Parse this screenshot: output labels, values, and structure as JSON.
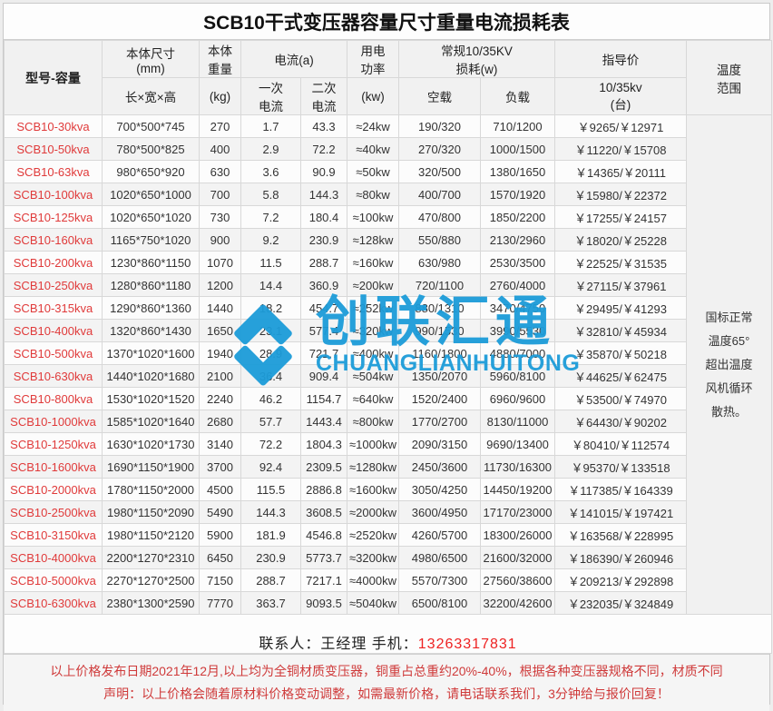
{
  "title": "SCB10干式变压器容量尺寸重量电流损耗表",
  "colors": {
    "accent_red": "#e03a3a",
    "phone_red": "#ee2222",
    "watermark_blue": "#1c9cd9"
  },
  "watermark": {
    "cn": "创联汇通",
    "en": "CHUANGLIANHUITONG"
  },
  "table": {
    "header": {
      "model": "型号-容量",
      "dims_group": "本体尺寸\n(mm)",
      "dims_sub": "长×宽×高",
      "weight_group": "本体\n重量",
      "weight_sub": "(kg)",
      "current_group": "电流(a)",
      "current_primary": "一次\n电流",
      "current_secondary": "二次\n电流",
      "power_group": "用电\n功率",
      "power_sub": "(kw)",
      "loss_group": "常规10/35KV\n损耗(w)",
      "loss_no_load": "空载",
      "loss_load": "负载",
      "price_group": "指导价",
      "price_sub": "10/35kv\n(台)",
      "temperature": "温度\n范围"
    },
    "temperature_note": "国标正常\n温度65°\n超出温度\n风机循环\n散热。",
    "rows": [
      {
        "model": "SCB10-30kva",
        "dims": "700*500*745",
        "weight": "270",
        "i1": "1.7",
        "i2": "43.3",
        "power": "≈24kw",
        "no_load": "190/320",
        "load": "710/1200",
        "price": "￥9265/￥12971"
      },
      {
        "model": "SCB10-50kva",
        "dims": "780*500*825",
        "weight": "400",
        "i1": "2.9",
        "i2": "72.2",
        "power": "≈40kw",
        "no_load": "270/320",
        "load": "1000/1500",
        "price": "￥11220/￥15708"
      },
      {
        "model": "SCB10-63kva",
        "dims": "980*650*920",
        "weight": "630",
        "i1": "3.6",
        "i2": "90.9",
        "power": "≈50kw",
        "no_load": "320/500",
        "load": "1380/1650",
        "price": "￥14365/￥20111"
      },
      {
        "model": "SCB10-100kva",
        "dims": "1020*650*1000",
        "weight": "700",
        "i1": "5.8",
        "i2": "144.3",
        "power": "≈80kw",
        "no_load": "400/700",
        "load": "1570/1920",
        "price": "￥15980/￥22372"
      },
      {
        "model": "SCB10-125kva",
        "dims": "1020*650*1020",
        "weight": "730",
        "i1": "7.2",
        "i2": "180.4",
        "power": "≈100kw",
        "no_load": "470/800",
        "load": "1850/2200",
        "price": "￥17255/￥24157"
      },
      {
        "model": "SCB10-160kva",
        "dims": "1165*750*1020",
        "weight": "900",
        "i1": "9.2",
        "i2": "230.9",
        "power": "≈128kw",
        "no_load": "550/880",
        "load": "2130/2960",
        "price": "￥18020/￥25228"
      },
      {
        "model": "SCB10-200kva",
        "dims": "1230*860*1150",
        "weight": "1070",
        "i1": "11.5",
        "i2": "288.7",
        "power": "≈160kw",
        "no_load": "630/980",
        "load": "2530/3500",
        "price": "￥22525/￥31535"
      },
      {
        "model": "SCB10-250kva",
        "dims": "1280*860*1180",
        "weight": "1200",
        "i1": "14.4",
        "i2": "360.9",
        "power": "≈200kw",
        "no_load": "720/1100",
        "load": "2760/4000",
        "price": "￥27115/￥37961"
      },
      {
        "model": "SCB10-315kva",
        "dims": "1290*860*1360",
        "weight": "1440",
        "i1": "18.2",
        "i2": "454.7",
        "power": "≈252kw",
        "no_load": "880/1310",
        "load": "3470/4750",
        "price": "￥29495/￥41293"
      },
      {
        "model": "SCB10-400kva",
        "dims": "1320*860*1430",
        "weight": "1650",
        "i1": "23.1",
        "i2": "577.4",
        "power": "≈320kw",
        "no_load": "990/1530",
        "load": "3990/5530",
        "price": "￥32810/￥45934"
      },
      {
        "model": "SCB10-500kva",
        "dims": "1370*1020*1600",
        "weight": "1940",
        "i1": "28.9",
        "i2": "721.7",
        "power": "≈400kw",
        "no_load": "1160/1800",
        "load": "4880/7000",
        "price": "￥35870/￥50218"
      },
      {
        "model": "SCB10-630kva",
        "dims": "1440*1020*1680",
        "weight": "2100",
        "i1": "36.4",
        "i2": "909.4",
        "power": "≈504kw",
        "no_load": "1350/2070",
        "load": "5960/8100",
        "price": "￥44625/￥62475"
      },
      {
        "model": "SCB10-800kva",
        "dims": "1530*1020*1520",
        "weight": "2240",
        "i1": "46.2",
        "i2": "1154.7",
        "power": "≈640kw",
        "no_load": "1520/2400",
        "load": "6960/9600",
        "price": "￥53500/￥74970"
      },
      {
        "model": "SCB10-1000kva",
        "dims": "1585*1020*1640",
        "weight": "2680",
        "i1": "57.7",
        "i2": "1443.4",
        "power": "≈800kw",
        "no_load": "1770/2700",
        "load": "8130/11000",
        "price": "￥64430/￥90202"
      },
      {
        "model": "SCB10-1250kva",
        "dims": "1630*1020*1730",
        "weight": "3140",
        "i1": "72.2",
        "i2": "1804.3",
        "power": "≈1000kw",
        "no_load": "2090/3150",
        "load": "9690/13400",
        "price": "￥80410/￥112574"
      },
      {
        "model": "SCB10-1600kva",
        "dims": "1690*1150*1900",
        "weight": "3700",
        "i1": "92.4",
        "i2": "2309.5",
        "power": "≈1280kw",
        "no_load": "2450/3600",
        "load": "11730/16300",
        "price": "￥95370/￥133518"
      },
      {
        "model": "SCB10-2000kva",
        "dims": "1780*1150*2000",
        "weight": "4500",
        "i1": "115.5",
        "i2": "2886.8",
        "power": "≈1600kw",
        "no_load": "3050/4250",
        "load": "14450/19200",
        "price": "￥117385/￥164339"
      },
      {
        "model": "SCB10-2500kva",
        "dims": "1980*1150*2090",
        "weight": "5490",
        "i1": "144.3",
        "i2": "3608.5",
        "power": "≈2000kw",
        "no_load": "3600/4950",
        "load": "17170/23000",
        "price": "￥141015/￥197421"
      },
      {
        "model": "SCB10-3150kva",
        "dims": "1980*1150*2120",
        "weight": "5900",
        "i1": "181.9",
        "i2": "4546.8",
        "power": "≈2520kw",
        "no_load": "4260/5700",
        "load": "18300/26000",
        "price": "￥163568/￥228995"
      },
      {
        "model": "SCB10-4000kva",
        "dims": "2200*1270*2310",
        "weight": "6450",
        "i1": "230.9",
        "i2": "5773.7",
        "power": "≈3200kw",
        "no_load": "4980/6500",
        "load": "21600/32000",
        "price": "￥186390/￥260946"
      },
      {
        "model": "SCB10-5000kva",
        "dims": "2270*1270*2500",
        "weight": "7150",
        "i1": "288.7",
        "i2": "7217.1",
        "power": "≈4000kw",
        "no_load": "5570/7300",
        "load": "27560/38600",
        "price": "￥209213/￥292898"
      },
      {
        "model": "SCB10-6300kva",
        "dims": "2380*1300*2590",
        "weight": "7770",
        "i1": "363.7",
        "i2": "9093.5",
        "power": "≈5040kw",
        "no_load": "6500/8100",
        "load": "32200/42600",
        "price": "￥232035/￥324849"
      }
    ]
  },
  "contact": {
    "label": "联系人：王经理 手机：",
    "phone": "13263317831"
  },
  "notes": {
    "line1": "以上价格发布日期2021年12月,以上均为全铜材质变压器，铜重占总重约20%-40%，根据各种变压器规格不同，材质不同",
    "line2": "声明：以上价格会随着原材料价格变动调整，如需最新价格，请电话联系我们，3分钟给与报价回复！"
  }
}
